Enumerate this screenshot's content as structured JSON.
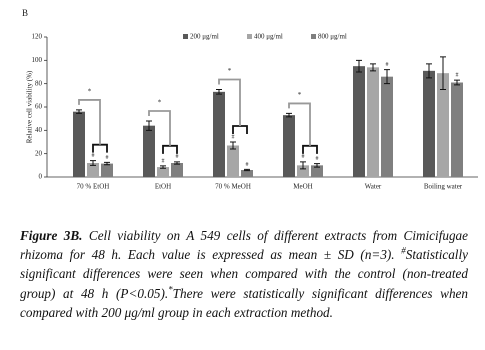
{
  "chart_data": {
    "type": "bar",
    "panel_label": "B",
    "y_label": "Relative cell viability (%)",
    "categories": [
      "70 % EtOH",
      "EtOH",
      "70 % MeOH",
      "MeOH",
      "Water",
      "Boiling water"
    ],
    "series": [
      {
        "name": "200 μg/ml",
        "color": "#595959",
        "values": [
          56,
          44,
          73,
          53,
          95,
          91
        ],
        "errors": [
          1.5,
          4,
          2,
          1.5,
          5,
          6
        ],
        "markers": [
          "*",
          "*",
          "*",
          "*",
          null,
          null
        ]
      },
      {
        "name": "400 μg/ml",
        "color": "#a6a6a6",
        "values": [
          12,
          8.5,
          27,
          10,
          94,
          89
        ],
        "errors": [
          2,
          1,
          3,
          3,
          3,
          14
        ],
        "markers": [
          "#",
          "#",
          "#",
          "#",
          null,
          null
        ]
      },
      {
        "name": "800 μg/ml",
        "color": "#7f7f7f",
        "values": [
          11.5,
          12,
          6,
          10,
          86,
          81
        ],
        "errors": [
          1,
          1,
          0.5,
          1.5,
          6,
          2
        ],
        "markers": [
          "#",
          "#",
          "#",
          "#",
          "#",
          "#"
        ]
      }
    ],
    "ylim": [
      0,
      120
    ],
    "yticks": [
      0,
      20,
      40,
      60,
      80,
      100,
      120
    ],
    "grid": false
  },
  "caption": {
    "lead": "Figure 3B.",
    "text1": " Cell viability on A 549 cells of different extracts from Cimicifugae rhizoma for 48 h. Each value is expressed as mean ± SD (n=3). ",
    "sup1": "#",
    "text2": "Statistically significant differences were seen when compared with the control (non-treated group) at 48 h (P<0.05).",
    "sup2": "*",
    "text3": "There were statistically significant differences when compared with 200 μg/ml group in each extraction method."
  }
}
